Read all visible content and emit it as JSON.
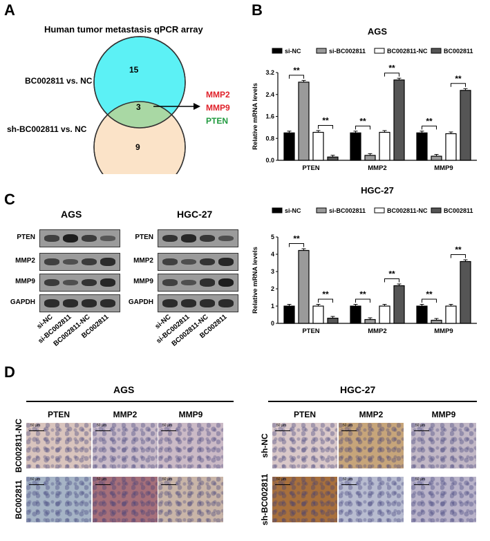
{
  "panel_a": {
    "letter": "A",
    "title": "Human tumor metastasis qPCR array",
    "label_top": "BC002811 vs. NC",
    "label_bottom": "sh-BC002811 vs. NC",
    "count_top": "15",
    "count_overlap": "3",
    "count_bottom": "9",
    "genes": [
      {
        "name": "MMP2",
        "color": "#e0212a"
      },
      {
        "name": "MMP9",
        "color": "#e0212a"
      },
      {
        "name": "PTEN",
        "color": "#1f9a3e"
      }
    ],
    "colors": {
      "top": "#5cf1f5",
      "bottom": "#fbe3c8",
      "overlap": "#a9d8a4"
    }
  },
  "panel_b": {
    "letter": "B"
  },
  "panel_c": {
    "letter": "C"
  },
  "panel_d": {
    "letter": "D"
  },
  "chart_data": [
    {
      "type": "bar",
      "title": "AGS",
      "ylabel": "Relative mRNA levels",
      "xlabel": "",
      "ylim": [
        0,
        3.2
      ],
      "yticks": [
        "0.0",
        "0.8",
        "1.6",
        "2.4",
        "3.2"
      ],
      "categories": [
        "PTEN",
        "MMP2",
        "MMP9"
      ],
      "series": [
        {
          "name": "si-NC",
          "values": [
            1.0,
            1.0,
            1.0
          ],
          "color": "#000000"
        },
        {
          "name": "si-BC002811",
          "values": [
            2.85,
            0.18,
            0.15
          ],
          "color": "#9a9a9a"
        },
        {
          "name": "BC002811-NC",
          "values": [
            1.02,
            1.02,
            0.97
          ],
          "color": "#ffffff"
        },
        {
          "name": "BC002811",
          "values": [
            0.12,
            2.93,
            2.55
          ],
          "color": "#555555"
        }
      ],
      "significance": [
        "**",
        "**",
        "**",
        "**",
        "**",
        "**"
      ],
      "legend": "top"
    },
    {
      "type": "bar",
      "title": "HGC-27",
      "ylabel": "Relative mRNA levels",
      "xlabel": "",
      "ylim": [
        0,
        5
      ],
      "yticks": [
        "0",
        "1",
        "2",
        "3",
        "4",
        "5"
      ],
      "categories": [
        "PTEN",
        "MMP2",
        "MMP9"
      ],
      "series": [
        {
          "name": "si-NC",
          "values": [
            1.0,
            1.0,
            1.0
          ],
          "color": "#000000"
        },
        {
          "name": "si-BC002811",
          "values": [
            4.22,
            0.22,
            0.18
          ],
          "color": "#9a9a9a"
        },
        {
          "name": "BC002811-NC",
          "values": [
            1.0,
            1.0,
            1.0
          ],
          "color": "#ffffff"
        },
        {
          "name": "BC002811",
          "values": [
            0.3,
            2.18,
            3.58
          ],
          "color": "#555555"
        }
      ],
      "significance": [
        "**",
        "**",
        "**",
        "**",
        "**",
        "**"
      ],
      "legend": "top"
    }
  ],
  "western": {
    "blots": [
      {
        "title": "AGS",
        "rows": [
          "PTEN",
          "MMP2",
          "MMP9",
          "GAPDH"
        ],
        "lanes": [
          "si-NC",
          "si-BC002811",
          "BC002811-NC",
          "BC002811"
        ]
      },
      {
        "title": "HGC-27",
        "rows": [
          "PTEN",
          "MMP2",
          "MMP9",
          "GAPDH"
        ],
        "lanes": [
          "si-NC",
          "si-BC002811",
          "BC002811-NC",
          "BC002811"
        ]
      }
    ]
  },
  "ihc": {
    "groups": [
      {
        "title": "AGS",
        "columns": [
          "PTEN",
          "MMP2",
          "MMP9"
        ],
        "rows": [
          "BC002811-NC",
          "BC002811"
        ]
      },
      {
        "title": "HGC-27",
        "columns": [
          "PTEN",
          "MMP2",
          "MMP9"
        ],
        "rows": [
          "sh-NC",
          "sh-BC002811"
        ]
      }
    ],
    "scale_bar": "50 μm"
  }
}
